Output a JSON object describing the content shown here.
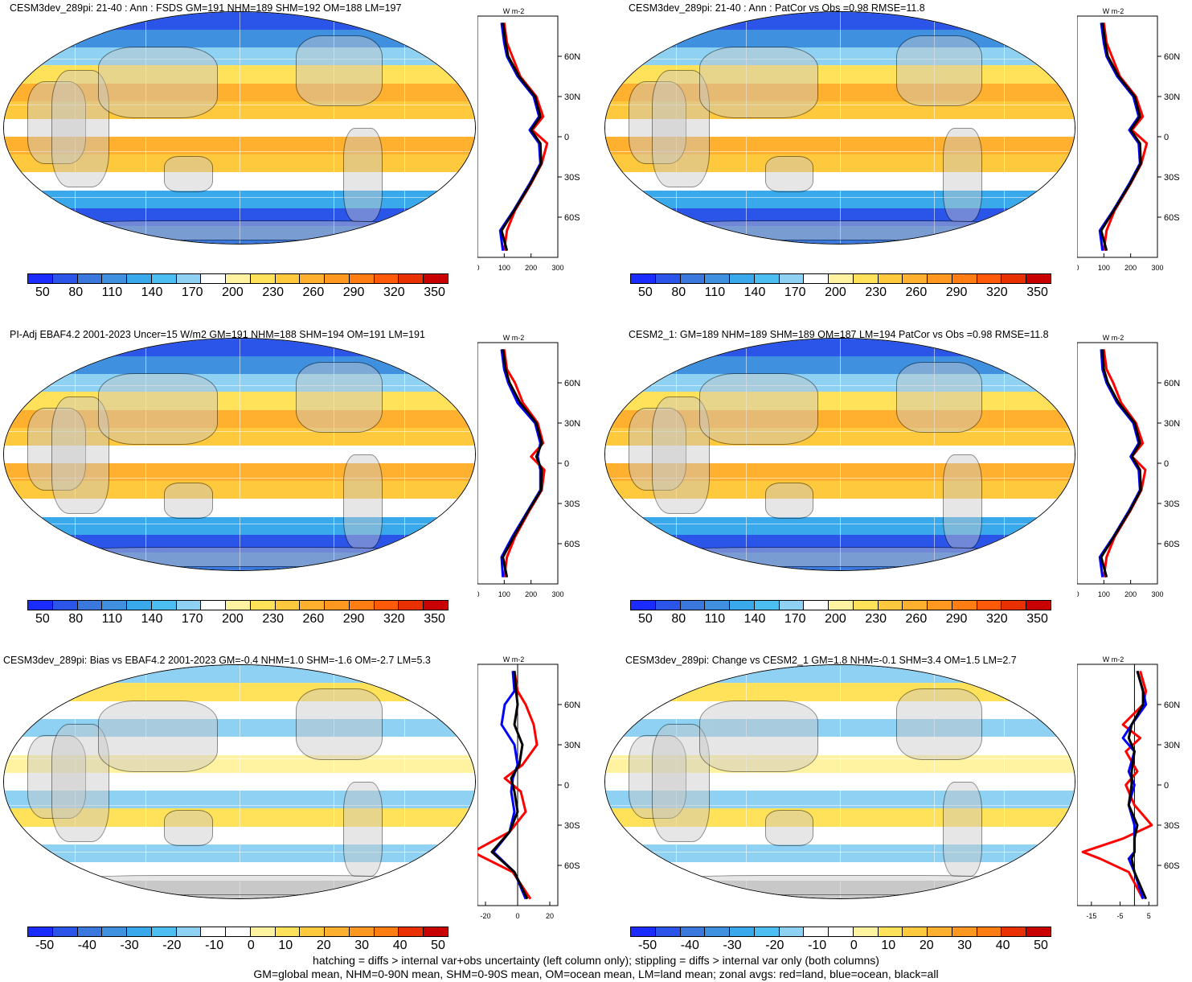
{
  "panels": [
    {
      "title": "CESM3dev_289pi: 21-40 : Ann : FSDS GM=191 NHM=189 SHM=192 OM=188 LM=197",
      "type": "mean",
      "colorbar_labels": [
        "50",
        "80",
        "110",
        "140",
        "170",
        "200",
        "230",
        "260",
        "290",
        "320",
        "350"
      ],
      "zonal_xticks": [
        "0",
        "100",
        "200",
        "300"
      ],
      "zonal_units": "W m-2",
      "zonal_yticks": [
        "60N",
        "30N",
        "0",
        "30S",
        "60S"
      ],
      "chart_data": {
        "type": "line",
        "xlim": [
          0,
          300
        ],
        "ylim": [
          -90,
          90
        ],
        "series": [
          {
            "name": "land",
            "color": "#ff0000",
            "x": [
              100,
              110,
              130,
              160,
              220,
              245,
              205,
              260,
              240,
              200,
              140,
              110,
              100
            ],
            "y": [
              85,
              70,
              60,
              45,
              30,
              15,
              5,
              -5,
              -20,
              -35,
              -55,
              -70,
              -85
            ]
          },
          {
            "name": "ocean",
            "color": "#0000ff",
            "x": [
              90,
              100,
              110,
              150,
              210,
              230,
              195,
              230,
              235,
              195,
              135,
              85,
              95
            ],
            "y": [
              85,
              70,
              60,
              45,
              30,
              15,
              5,
              -5,
              -20,
              -35,
              -55,
              -70,
              -85
            ]
          },
          {
            "name": "all",
            "color": "#000000",
            "x": [
              95,
              105,
              115,
              155,
              215,
              235,
              200,
              235,
              238,
              198,
              137,
              90,
              110
            ],
            "y": [
              85,
              70,
              60,
              45,
              30,
              15,
              5,
              -5,
              -20,
              -35,
              -55,
              -70,
              -85
            ]
          }
        ]
      }
    },
    {
      "title": "CESM3dev_289pi: 21-40 : Ann : PatCor vs Obs =0.98 RMSE=11.8",
      "type": "mean",
      "colorbar_labels": [
        "50",
        "80",
        "110",
        "140",
        "170",
        "200",
        "230",
        "260",
        "290",
        "320",
        "350"
      ],
      "zonal_xticks": [
        "0",
        "100",
        "200",
        "300"
      ],
      "zonal_units": "W m-2",
      "zonal_yticks": [
        "60N",
        "30N",
        "0",
        "30S",
        "60S"
      ],
      "chart_data": {
        "type": "line",
        "xlim": [
          0,
          300
        ],
        "ylim": [
          -90,
          90
        ],
        "series": [
          {
            "name": "land",
            "color": "#ff0000",
            "x": [
              100,
              110,
              130,
              160,
              220,
              245,
              205,
              260,
              240,
              200,
              140,
              110,
              100
            ],
            "y": [
              85,
              70,
              60,
              45,
              30,
              15,
              5,
              -5,
              -20,
              -35,
              -55,
              -70,
              -85
            ]
          },
          {
            "name": "ocean",
            "color": "#0000ff",
            "x": [
              90,
              100,
              110,
              150,
              210,
              230,
              195,
              230,
              235,
              195,
              135,
              85,
              95
            ],
            "y": [
              85,
              70,
              60,
              45,
              30,
              15,
              5,
              -5,
              -20,
              -35,
              -55,
              -70,
              -85
            ]
          },
          {
            "name": "all",
            "color": "#000000",
            "x": [
              95,
              105,
              115,
              155,
              215,
              235,
              200,
              235,
              238,
              198,
              137,
              90,
              110
            ],
            "y": [
              85,
              70,
              60,
              45,
              30,
              15,
              5,
              -5,
              -20,
              -35,
              -55,
              -70,
              -85
            ]
          }
        ]
      }
    },
    {
      "title": "PI-Adj EBAF4.2 2001-2023 Uncer=15 W/m2 GM=191 NHM=188 SHM=194 OM=191 LM=191",
      "type": "mean",
      "colorbar_labels": [
        "50",
        "80",
        "110",
        "140",
        "170",
        "200",
        "230",
        "260",
        "290",
        "320",
        "350"
      ],
      "zonal_xticks": [
        "0",
        "100",
        "200",
        "300"
      ],
      "zonal_units": "W m-2",
      "zonal_yticks": [
        "60N",
        "30N",
        "0",
        "30S",
        "60S"
      ],
      "chart_data": {
        "type": "line",
        "xlim": [
          0,
          300
        ],
        "ylim": [
          -90,
          90
        ],
        "series": [
          {
            "name": "land",
            "color": "#ff0000",
            "x": [
              100,
              110,
              140,
              170,
              225,
              245,
              200,
              250,
              240,
              195,
              140,
              110,
              100
            ],
            "y": [
              85,
              70,
              60,
              45,
              30,
              15,
              5,
              -5,
              -20,
              -35,
              -55,
              -70,
              -85
            ]
          },
          {
            "name": "ocean",
            "color": "#0000ff",
            "x": [
              90,
              100,
              115,
              150,
              215,
              235,
              225,
              235,
              235,
              190,
              130,
              90,
              95
            ],
            "y": [
              85,
              70,
              60,
              45,
              30,
              15,
              5,
              -5,
              -20,
              -35,
              -55,
              -70,
              -85
            ]
          },
          {
            "name": "all",
            "color": "#000000",
            "x": [
              95,
              105,
              120,
              160,
              220,
              240,
              220,
              240,
              238,
              192,
              135,
              95,
              110
            ],
            "y": [
              85,
              70,
              60,
              45,
              30,
              15,
              5,
              -5,
              -20,
              -35,
              -55,
              -70,
              -85
            ]
          }
        ]
      }
    },
    {
      "title": "CESM2_1: GM=189 NHM=189 SHM=189 OM=187 LM=194 PatCor vs Obs =0.98 RMSE=11.8",
      "type": "mean",
      "colorbar_labels": [
        "50",
        "80",
        "110",
        "140",
        "170",
        "200",
        "230",
        "260",
        "290",
        "320",
        "350"
      ],
      "zonal_xticks": [
        "0",
        "100",
        "200",
        "300"
      ],
      "zonal_units": "W m-2",
      "zonal_yticks": [
        "60N",
        "30N",
        "0",
        "30S",
        "60S"
      ],
      "chart_data": {
        "type": "line",
        "xlim": [
          0,
          300
        ],
        "ylim": [
          -90,
          90
        ],
        "series": [
          {
            "name": "land",
            "color": "#ff0000",
            "x": [
              100,
              110,
              135,
              165,
              220,
              245,
              205,
              255,
              240,
              200,
              140,
              110,
              100
            ],
            "y": [
              85,
              70,
              60,
              45,
              30,
              15,
              5,
              -5,
              -20,
              -35,
              -55,
              -70,
              -85
            ]
          },
          {
            "name": "ocean",
            "color": "#0000ff",
            "x": [
              90,
              95,
              110,
              150,
              210,
              230,
              200,
              230,
              235,
              195,
              135,
              85,
              95
            ],
            "y": [
              85,
              70,
              60,
              45,
              30,
              15,
              5,
              -5,
              -20,
              -35,
              -55,
              -70,
              -85
            ]
          },
          {
            "name": "all",
            "color": "#000000",
            "x": [
              95,
              100,
              115,
              155,
              215,
              235,
              205,
              235,
              238,
              198,
              137,
              90,
              110
            ],
            "y": [
              85,
              70,
              60,
              45,
              30,
              15,
              5,
              -5,
              -20,
              -35,
              -55,
              -70,
              -85
            ]
          }
        ]
      }
    },
    {
      "title": "CESM3dev_289pi: Bias vs EBAF4.2 2001-2023 GM=-0.4 NHM=1.0 SHM=-1.6 OM=-2.7 LM=5.3",
      "type": "diff",
      "colorbar_labels": [
        "-50",
        "-40",
        "-30",
        "-20",
        "-10",
        "0",
        "10",
        "20",
        "30",
        "40",
        "50"
      ],
      "zonal_xticks": [
        "-20",
        "0",
        "20"
      ],
      "zonal_units": "W m-2",
      "zonal_yticks": [
        "60N",
        "30N",
        "0",
        "30S",
        "60S"
      ],
      "chart_data": {
        "type": "line",
        "xlim": [
          -25,
          25
        ],
        "ylim": [
          -90,
          90
        ],
        "series": [
          {
            "name": "land",
            "color": "#ff0000",
            "x": [
              -2,
              0,
              5,
              10,
              12,
              3,
              -8,
              2,
              5,
              -5,
              -28,
              -3,
              8
            ],
            "y": [
              85,
              70,
              60,
              45,
              30,
              15,
              5,
              -5,
              -20,
              -35,
              -50,
              -65,
              -85
            ]
          },
          {
            "name": "ocean",
            "color": "#0000ff",
            "x": [
              -3,
              -2,
              -8,
              -10,
              -2,
              0,
              -3,
              -4,
              -2,
              -5,
              -15,
              -2,
              5
            ],
            "y": [
              85,
              70,
              60,
              45,
              30,
              15,
              5,
              -5,
              -20,
              -35,
              -50,
              -65,
              -85
            ]
          },
          {
            "name": "all",
            "color": "#000000",
            "x": [
              -2,
              -1,
              0,
              -2,
              3,
              1,
              -4,
              -2,
              0,
              -5,
              -16,
              -2,
              6
            ],
            "y": [
              85,
              70,
              60,
              45,
              30,
              15,
              5,
              -5,
              -20,
              -35,
              -50,
              -65,
              -85
            ]
          }
        ]
      }
    },
    {
      "title": "CESM3dev_289pi: Change vs CESM2_1 GM=1.8 NHM=-0.1 SHM=3.4 OM=1.5 LM=2.7",
      "type": "diff",
      "colorbar_labels": [
        "-50",
        "-40",
        "-30",
        "-20",
        "-10",
        "0",
        "10",
        "20",
        "30",
        "40",
        "50"
      ],
      "zonal_xticks": [
        "-15",
        "-5",
        "5"
      ],
      "zonal_units": "W m-2",
      "zonal_yticks": [
        "60N",
        "30N",
        "0",
        "30S",
        "60S"
      ],
      "chart_data": {
        "type": "line",
        "xlim": [
          -20,
          8
        ],
        "ylim": [
          -90,
          90
        ],
        "series": [
          {
            "name": "land",
            "color": "#ff0000",
            "x": [
              2,
              4,
              3,
              -4,
              2,
              -3,
              1,
              -3,
              0,
              6,
              -4,
              -18,
              -12,
              -2,
              3
            ],
            "y": [
              85,
              70,
              60,
              45,
              35,
              25,
              10,
              0,
              -15,
              -30,
              -40,
              -50,
              -55,
              -65,
              -85
            ]
          },
          {
            "name": "ocean",
            "color": "#0000ff",
            "x": [
              1,
              3,
              4,
              -1,
              -4,
              0,
              -2,
              0,
              -2,
              0,
              0,
              0,
              -2,
              0,
              3
            ],
            "y": [
              85,
              70,
              60,
              45,
              35,
              25,
              10,
              0,
              -15,
              -30,
              -40,
              -50,
              -55,
              -65,
              -85
            ]
          },
          {
            "name": "all",
            "color": "#000000",
            "x": [
              1,
              3,
              3,
              -1,
              -2,
              0,
              -1,
              -1,
              -2,
              1,
              0,
              0,
              -1,
              0,
              4
            ],
            "y": [
              85,
              70,
              60,
              45,
              35,
              25,
              10,
              0,
              -15,
              -30,
              -40,
              -50,
              -55,
              -65,
              -85
            ]
          }
        ]
      }
    }
  ],
  "colors": {
    "mean_scale": [
      "#1a2cff",
      "#2a55e8",
      "#3a78dd",
      "#3f91e0",
      "#3aa9ec",
      "#4cbef2",
      "#8fd1f2",
      "#ffffff",
      "#fff2a0",
      "#ffe15a",
      "#ffc93e",
      "#ffb02e",
      "#ff9820",
      "#ff7d12",
      "#ff5a0a",
      "#e83000",
      "#c80000"
    ],
    "diff_scale": [
      "#1a2cff",
      "#2a55e8",
      "#3a78dd",
      "#3f91e0",
      "#3aa9ec",
      "#4cbef2",
      "#8fd1f2",
      "#ffffff",
      "#ffffff",
      "#fff2a0",
      "#ffe15a",
      "#ffc93e",
      "#ffb02e",
      "#ff9820",
      "#ff7d12",
      "#e83000",
      "#c80000"
    ]
  },
  "footnote": [
    "hatching = diffs > internal var+obs uncertainty (left column only); stippling = diffs > internal var only (both columns)",
    "GM=global mean, NHM=0-90N mean, SHM=0-90S mean, OM=ocean mean, LM=land mean; zonal avgs: red=land, blue=ocean, black=all"
  ]
}
